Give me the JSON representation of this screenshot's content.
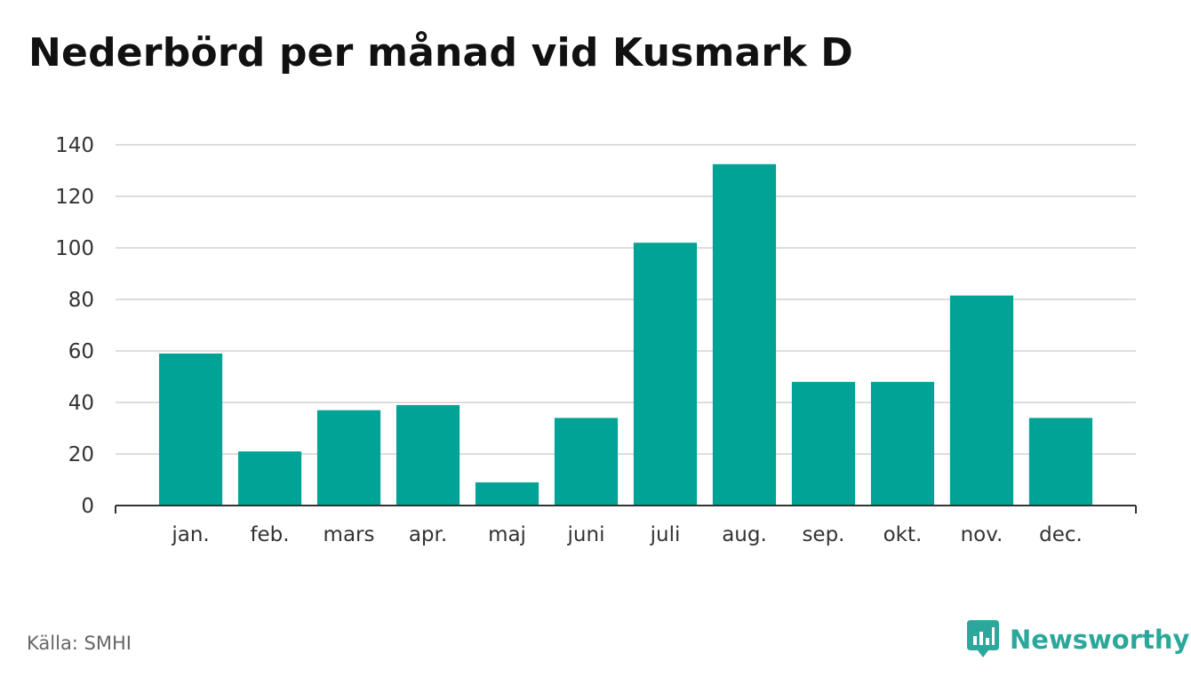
{
  "title": "Nederbörd per månad vid Kusmark D",
  "source": "Källa: SMHI",
  "brand": {
    "name": "Newsworthy",
    "logo_icon": "newsworthy-chart-bubble-icon"
  },
  "colors": {
    "bar": "#00a396",
    "grid": "#dddddd",
    "axis": "#333333",
    "text": "#333333",
    "brand": "#2ba89b"
  },
  "chart_data": {
    "type": "bar",
    "title": "Nederbörd per månad vid Kusmark D",
    "categories": [
      "jan.",
      "feb.",
      "mars",
      "apr.",
      "maj",
      "juni",
      "juli",
      "aug.",
      "sep.",
      "okt.",
      "nov.",
      "dec."
    ],
    "values": [
      59,
      21,
      37,
      39,
      9,
      34,
      102,
      132.5,
      48,
      48,
      81.5,
      34
    ],
    "ylim": [
      0,
      140
    ],
    "yticks": [
      0,
      20,
      40,
      60,
      80,
      100,
      120,
      140
    ],
    "grid": true,
    "legend": "none"
  }
}
